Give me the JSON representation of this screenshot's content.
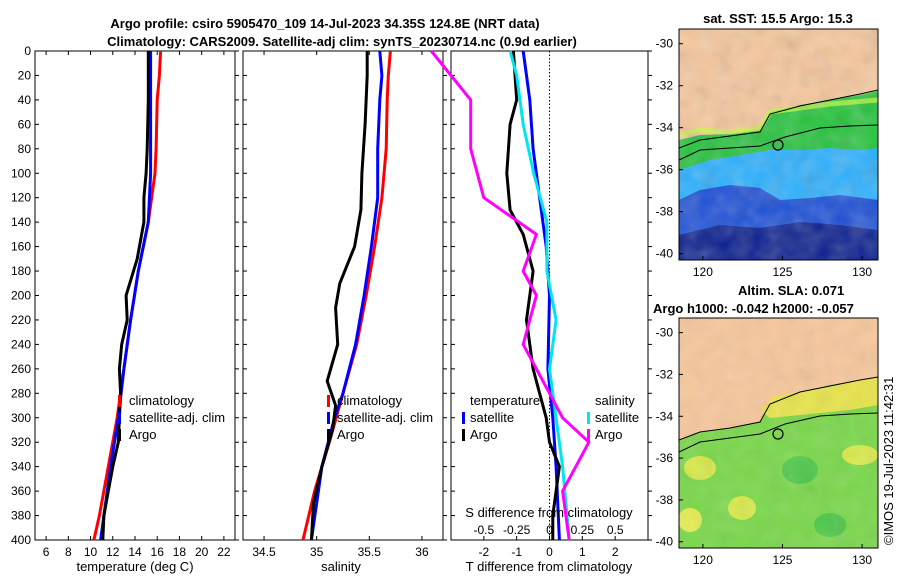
{
  "header": {
    "title_line1": "Argo profile: csiro 5905470_109 14-Jul-2023 34.35S 124.8E (NRT data)",
    "title_line2": "Climatology: CARS2009. Satellite-adj clim: synTS_20230714.nc (0.9d earlier)"
  },
  "colors": {
    "climatology": "#ff0000",
    "satellite": "#0000ff",
    "argo": "#000000",
    "sat_salinity": "#00e5ee",
    "argo_salinity": "#ff00ff"
  },
  "depth_axis": {
    "ticks": [
      "0",
      "20",
      "40",
      "60",
      "80",
      "100",
      "120",
      "140",
      "160",
      "180",
      "200",
      "220",
      "240",
      "260",
      "280",
      "300",
      "320",
      "340",
      "360",
      "380",
      "400"
    ]
  },
  "chart_data": [
    {
      "type": "line",
      "xlabel": "temperature (deg C)",
      "ylabel": "depth",
      "xlim": [
        5,
        23
      ],
      "ylim": [
        400,
        0
      ],
      "xticks": [
        "6",
        "8",
        "10",
        "12",
        "14",
        "16",
        "18",
        "20",
        "22"
      ],
      "legend": [
        "climatology",
        "satellite-adj. clim",
        "Argo"
      ],
      "series": [
        {
          "name": "climatology",
          "depth": [
            0,
            20,
            40,
            80,
            100,
            140,
            180,
            220,
            260,
            300,
            340,
            380,
            400
          ],
          "values": [
            16.3,
            16.2,
            16.0,
            15.9,
            15.8,
            15.2,
            14.3,
            13.6,
            13.0,
            12.4,
            11.6,
            10.8,
            10.3
          ]
        },
        {
          "name": "satellite-adj. clim",
          "depth": [
            0,
            20,
            60,
            100,
            140,
            180,
            220,
            260,
            300,
            340,
            380,
            400
          ],
          "values": [
            15.4,
            15.4,
            15.4,
            15.4,
            15.2,
            14.3,
            13.6,
            13.0,
            12.5,
            11.8,
            11.2,
            10.9
          ]
        },
        {
          "name": "Argo",
          "depth": [
            0,
            40,
            80,
            100,
            120,
            140,
            170,
            200,
            220,
            240,
            260,
            280,
            300,
            320,
            340,
            360,
            380,
            400
          ],
          "values": [
            15.2,
            15.2,
            15.1,
            15.0,
            14.8,
            14.8,
            14.2,
            13.2,
            13.3,
            12.8,
            12.6,
            12.7,
            12.6,
            12.5,
            12.0,
            11.6,
            11.2,
            11.1
          ]
        }
      ]
    },
    {
      "type": "line",
      "xlabel": "salinity",
      "ylabel": "depth",
      "xlim": [
        34.3,
        36.2
      ],
      "ylim": [
        400,
        0
      ],
      "xticks": [
        "34.5",
        "35",
        "35.5",
        "36"
      ],
      "legend": [
        "climatology",
        "satellite-adj. clim",
        "Argo"
      ],
      "series": [
        {
          "name": "climatology",
          "depth": [
            0,
            20,
            40,
            80,
            120,
            160,
            200,
            240,
            280,
            320,
            360,
            400
          ],
          "values": [
            35.7,
            35.68,
            35.67,
            35.66,
            35.62,
            35.55,
            35.47,
            35.38,
            35.25,
            35.12,
            34.98,
            34.87
          ]
        },
        {
          "name": "satellite-adj. clim",
          "depth": [
            0,
            20,
            40,
            80,
            120,
            160,
            200,
            240,
            280,
            300,
            340,
            400
          ],
          "values": [
            35.6,
            35.62,
            35.6,
            35.58,
            35.58,
            35.52,
            35.45,
            35.37,
            35.25,
            35.17,
            35.05,
            34.95
          ]
        },
        {
          "name": "Argo",
          "depth": [
            0,
            20,
            60,
            100,
            130,
            160,
            190,
            210,
            240,
            270,
            290,
            310,
            340,
            370,
            400
          ],
          "values": [
            35.48,
            35.48,
            35.46,
            35.43,
            35.42,
            35.36,
            35.22,
            35.18,
            35.2,
            35.1,
            35.18,
            35.15,
            35.05,
            34.97,
            34.95
          ]
        }
      ]
    },
    {
      "type": "line",
      "xlabel": "T difference from climatology",
      "xlabel_top": "S difference from climatology",
      "ylabel": "depth",
      "xlim": [
        -3,
        3
      ],
      "ylim": [
        400,
        0
      ],
      "xticks": [
        "-2",
        "-1",
        "0",
        "1",
        "2"
      ],
      "xticks_top": [
        "-0.5",
        "-0.25",
        "0",
        "0.25",
        "0.5"
      ],
      "legend_temperature": [
        "temperature",
        "satellite",
        "Argo"
      ],
      "legend_salinity": [
        "salinity",
        "satellite",
        "Argo"
      ],
      "series": [
        {
          "name": "temperature satellite",
          "depth": [
            0,
            40,
            80,
            120,
            160,
            200,
            260,
            300,
            340,
            400
          ],
          "values": [
            -0.8,
            -0.6,
            -0.5,
            -0.3,
            -0.1,
            0.0,
            -0.05,
            0.1,
            0.2,
            0.3
          ]
        },
        {
          "name": "temperature Argo",
          "depth": [
            0,
            40,
            60,
            100,
            130,
            150,
            180,
            200,
            220,
            240,
            260,
            280,
            300,
            320,
            340,
            360,
            380,
            400
          ],
          "values": [
            -1.1,
            -1.0,
            -1.2,
            -1.3,
            -1.2,
            -0.8,
            -0.5,
            -0.6,
            -0.7,
            -0.6,
            -0.5,
            -0.3,
            -0.1,
            0.0,
            0.3,
            0.2,
            0.1,
            0.1
          ]
        },
        {
          "name": "salinity satellite",
          "depth": [
            0,
            20,
            60,
            100,
            140,
            180,
            220,
            260,
            300,
            340,
            400
          ],
          "values": [
            -0.3,
            -0.25,
            -0.2,
            -0.12,
            -0.02,
            -0.02,
            0.05,
            0.0,
            0.05,
            0.1,
            0.15
          ]
        },
        {
          "name": "salinity Argo",
          "depth": [
            0,
            40,
            80,
            120,
            150,
            180,
            200,
            240,
            280,
            300,
            320,
            340,
            360,
            400
          ],
          "values": [
            -0.9,
            -0.6,
            -0.6,
            -0.5,
            -0.1,
            -0.2,
            -0.1,
            -0.2,
            0.0,
            0.1,
            0.3,
            0.2,
            0.1,
            0.15
          ]
        }
      ]
    }
  ],
  "maps": {
    "sst": {
      "title": "sat. SST: 15.5 Argo: 15.3",
      "yticks": [
        "-30",
        "-32",
        "-34",
        "-36",
        "-38",
        "-40"
      ],
      "xticks": [
        "120",
        "125",
        "130"
      ]
    },
    "sla": {
      "title_line1": "Altim. SLA: 0.071",
      "title_line2": "Argo h1000: -0.042 h2000: -0.057",
      "yticks": [
        "-30",
        "-32",
        "-34",
        "-36",
        "-38",
        "-40"
      ],
      "xticks": [
        "120",
        "125",
        "130"
      ]
    }
  },
  "watermark": "©IMOS 19-Jul-2023 11:42:31"
}
